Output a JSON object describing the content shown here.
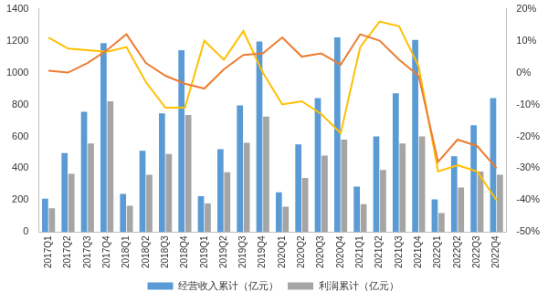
{
  "chart_data": {
    "type": "bar",
    "categories": [
      "2017Q1",
      "2017Q2",
      "2017Q3",
      "2017Q4",
      "2018Q1",
      "2018Q2",
      "2018Q3",
      "2018Q4",
      "2019Q1",
      "2019Q2",
      "2019Q3",
      "2019Q4",
      "2020Q1",
      "2020Q2",
      "2020Q3",
      "2020Q4",
      "2021Q1",
      "2021Q2",
      "2021Q3",
      "2021Q4",
      "2022Q1",
      "2022Q2",
      "2022Q3",
      "2022Q4"
    ],
    "series": [
      {
        "name": "经营收入累计（亿元）",
        "color": "#5b9bd5",
        "type": "bar",
        "values": [
          210,
          495,
          755,
          1185,
          240,
          510,
          745,
          1140,
          225,
          520,
          795,
          1195,
          250,
          550,
          840,
          1220,
          285,
          600,
          870,
          1205,
          205,
          475,
          670,
          840
        ]
      },
      {
        "name": "利润累计（亿元）",
        "color": "#a5a5a5",
        "type": "bar",
        "values": [
          150,
          365,
          555,
          820,
          165,
          360,
          490,
          735,
          180,
          375,
          560,
          725,
          160,
          340,
          480,
          580,
          175,
          390,
          555,
          600,
          120,
          280,
          380,
          360
        ]
      },
      {
        "color": "#ed7d31",
        "type": "line",
        "axis": "y2",
        "values": [
          0.6,
          0,
          3,
          7,
          12,
          3,
          -1,
          -3.5,
          -5,
          1,
          5.5,
          6,
          11,
          5,
          6,
          2.5,
          12,
          10,
          4,
          -1,
          -28,
          -21,
          -23,
          -30
        ]
      },
      {
        "color": "#ffc000",
        "type": "line",
        "axis": "y2",
        "values": [
          11,
          7.5,
          7,
          6.5,
          8,
          -3,
          -11,
          -11,
          10,
          4,
          13,
          0,
          -10,
          -9,
          -13,
          -19,
          8,
          16,
          14.5,
          2,
          -31,
          -29,
          -31,
          -40
        ]
      }
    ],
    "ylim": [
      0,
      1400
    ],
    "yticks": [
      0,
      200,
      400,
      600,
      800,
      1000,
      1200,
      1400
    ],
    "y2lim": [
      -50,
      20
    ],
    "y2ticks": [
      {
        "value": -50,
        "label": "-50%"
      },
      {
        "value": -40,
        "label": "-40%"
      },
      {
        "value": -30,
        "label": "-30%"
      },
      {
        "value": -20,
        "label": "-20%"
      },
      {
        "value": -10,
        "label": "-10%"
      },
      {
        "value": 0,
        "label": "0%"
      },
      {
        "value": 10,
        "label": "10%"
      },
      {
        "value": 20,
        "label": "20%"
      }
    ],
    "grid": false,
    "legend": "bottom"
  }
}
